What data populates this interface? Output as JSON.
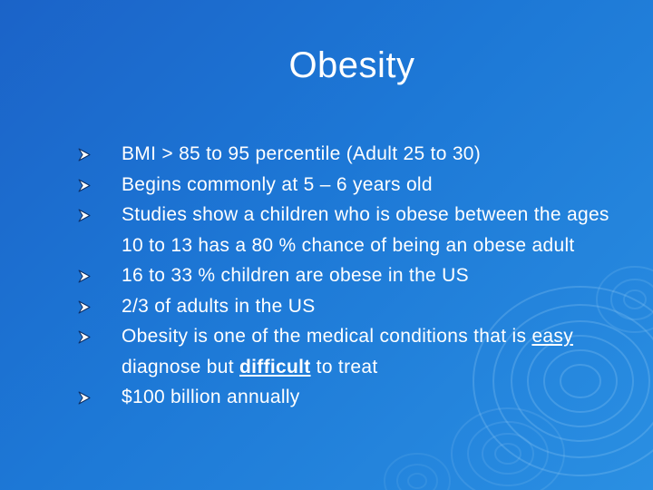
{
  "slide": {
    "title": "Obesity",
    "bullet_icon": "arrowhead-bullet-icon",
    "bullets": [
      "BMI > 85 to 95 percentile (Adult 25 to 30)",
      "Begins commonly at 5 – 6 years old",
      "Studies show a children who is obese between the ages 10 to 13 has a 80 % chance of being an obese adult",
      "16 to 33 % children are obese in the US",
      "2/3 of adults in the US",
      {
        "before": "Obesity is one of the medical conditions that is ",
        "emph1": "easy",
        "middle": " diagnose but ",
        "emph2": "difficult",
        "after": " to treat"
      },
      "$100 billion annually"
    ]
  },
  "colors": {
    "background": "#1d78d6",
    "text": "#ffffff"
  }
}
